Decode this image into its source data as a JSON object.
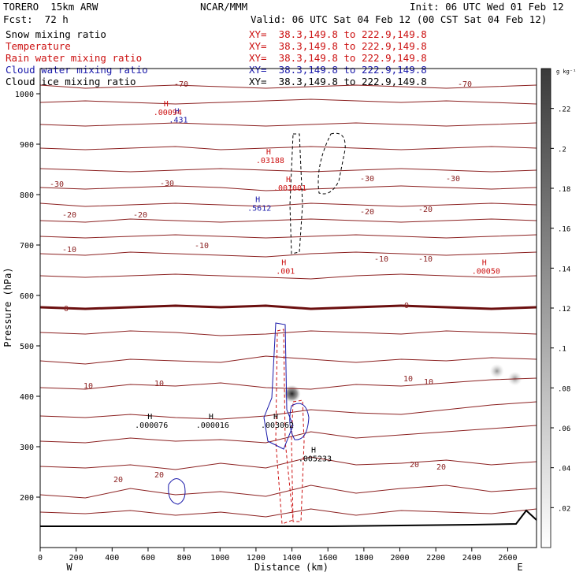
{
  "header": {
    "model": "TORERO  15km ARW",
    "center": "NCAR/MMM",
    "init": "Init: 06 UTC Wed 01 Feb 12",
    "fcst": "Fcst:  72 h",
    "valid": "Valid: 06 UTC Sat 04 Feb 12 (00 CST Sat 04 Feb 12)"
  },
  "fields": [
    {
      "name": "Snow mixing ratio",
      "xy": "XY=  38.3,149.8 to 222.9,149.8",
      "color": "#000000"
    },
    {
      "name": "Temperature",
      "xy": "XY=  38.3,149.8 to 222.9,149.8",
      "color": "#cc1111"
    },
    {
      "name": "Rain water mixing ratio",
      "xy": "XY=  38.3,149.8 to 222.9,149.8",
      "color": "#cc1111"
    },
    {
      "name": "Cloud water mixing ratio",
      "xy": "XY=  38.3,149.8 to 222.9,149.8",
      "color": "#1a1aaa"
    },
    {
      "name": "Cloud ice mixing ratio",
      "xy": "XY=  38.3,149.8 to 222.9,149.8",
      "color": "#000000"
    }
  ],
  "chart_data": {
    "type": "cross-section contour",
    "xlabel": "Distance (km)",
    "ylabel": "Pressure (hPa)",
    "xlim": [
      0,
      2760
    ],
    "ylim": [
      1050,
      100
    ],
    "x_ticks": [
      "0",
      "200",
      "400",
      "600",
      "800",
      "1000",
      "1200",
      "1400",
      "1600",
      "1800",
      "2000",
      "2200",
      "2400",
      "2600"
    ],
    "y_ticks": [
      "200",
      "300",
      "400",
      "500",
      "600",
      "700",
      "800",
      "900",
      "1000"
    ],
    "x_ends": {
      "left": "W",
      "right": "E"
    },
    "colorbar": {
      "unit": "g kg⁻¹",
      "ticks": [
        ".02",
        ".04",
        ".06",
        ".08",
        ".1",
        ".12",
        ".14",
        ".16",
        ".18",
        ".2",
        ".22"
      ],
      "range": [
        0,
        0.24
      ]
    },
    "temperature_isotherms": [
      {
        "value": -70,
        "labels": [
          "-70",
          "-70"
        ]
      },
      {
        "value": -30,
        "labels": [
          "-30",
          "-30",
          "-30",
          "-30"
        ]
      },
      {
        "value": -20,
        "labels": [
          "-20",
          "-20",
          "-20",
          "-20"
        ]
      },
      {
        "value": -10,
        "labels": [
          "-10",
          "-10",
          "-10",
          "-10"
        ]
      },
      {
        "value": 0,
        "labels": [
          "0",
          "0"
        ]
      },
      {
        "value": 10,
        "labels": [
          "10",
          "10",
          "10",
          "10"
        ]
      },
      {
        "value": 20,
        "labels": [
          "20",
          "20",
          "20",
          "20"
        ]
      }
    ],
    "extrema": [
      {
        "kind": "H",
        "value": ".000076",
        "field": "cloud ice",
        "x": 610,
        "p": 355
      },
      {
        "kind": "H",
        "value": ".000016",
        "field": "cloud ice",
        "x": 950,
        "p": 355
      },
      {
        "kind": "H",
        "value": ".003062",
        "field": "cloud ice",
        "x": 1310,
        "p": 355
      },
      {
        "kind": "H",
        "value": ".005233",
        "field": "cloud ice",
        "x": 1520,
        "p": 288
      },
      {
        "kind": "H",
        "value": ".00050",
        "field": "rain water",
        "x": 2470,
        "p": 660
      },
      {
        "kind": "H",
        "value": ".001",
        "field": "rain water",
        "x": 1355,
        "p": 660
      },
      {
        "kind": "H",
        "value": ".5612",
        "field": "cloud water",
        "x": 1210,
        "p": 785
      },
      {
        "kind": "H",
        "value": ".001001",
        "field": "rain water",
        "x": 1380,
        "p": 825
      },
      {
        "kind": "H",
        "value": ".03188",
        "field": "rain water",
        "x": 1270,
        "p": 880
      },
      {
        "kind": "H",
        "value": ".431",
        "field": "cloud water",
        "x": 760,
        "p": 960
      },
      {
        "kind": "H",
        "value": ".00094",
        "field": "rain water",
        "x": 700,
        "p": 975
      }
    ],
    "snow_maxima": [
      {
        "x": 1400,
        "p_top": 250,
        "p_bottom": 560,
        "peak": 0.22
      },
      {
        "x": 2540,
        "p_top": 360,
        "p_bottom": 540,
        "peak": 0.14
      },
      {
        "x": 2640,
        "p_top": 370,
        "p_bottom": 500,
        "peak": 0.08
      }
    ]
  }
}
